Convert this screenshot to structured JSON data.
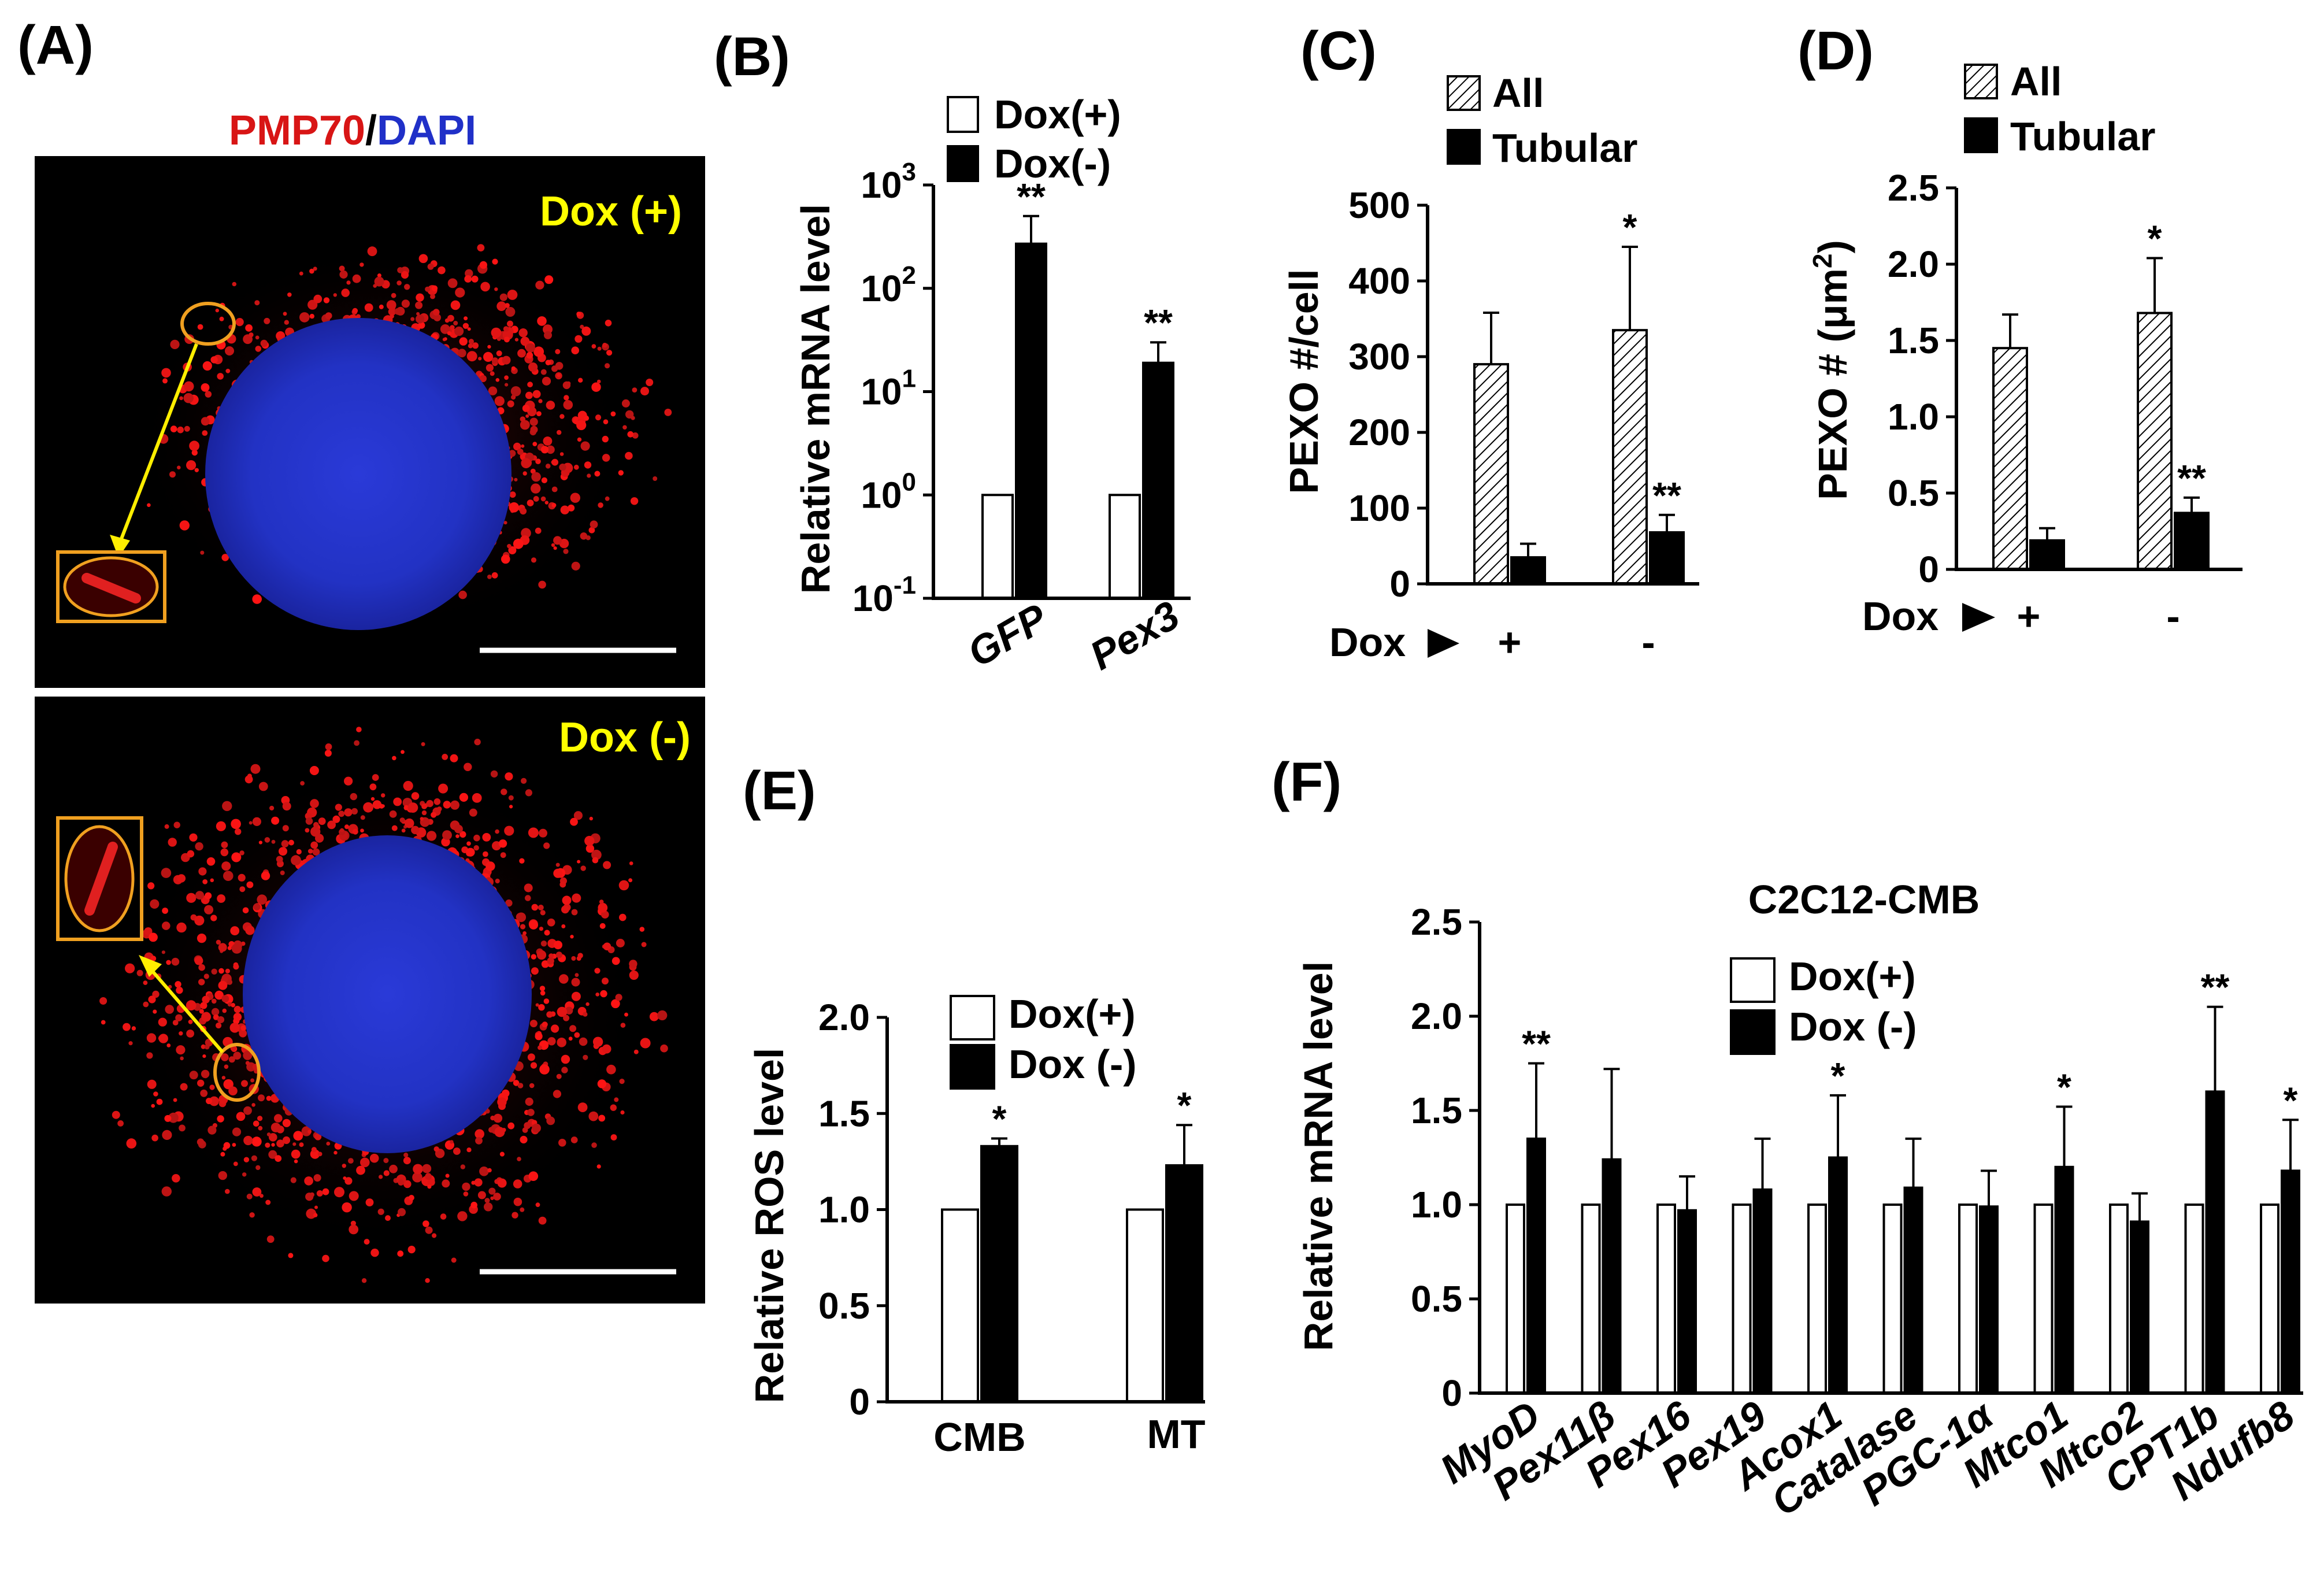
{
  "panel_labels": {
    "A": "(A)",
    "B": "(B)",
    "C": "(C)",
    "D": "(D)",
    "E": "(E)",
    "F": "(F)"
  },
  "micrograph": {
    "title_red": "PMP70",
    "title_sep": "/",
    "title_blue": "DAPI",
    "top_label": "Dox (+)",
    "bottom_label": "Dox (-)",
    "colors": {
      "stain": "#d81515",
      "nucleus": "#2030c8",
      "label": "#ffff00",
      "inset": "#f0a020",
      "arrow": "#ffee00"
    }
  },
  "chart_data": [
    {
      "id": "B",
      "type": "bar",
      "scale": "log",
      "ylabel": "Relative mRNA level",
      "ylim": [
        0.1,
        1000
      ],
      "yticks": [
        {
          "value": 0.1,
          "base": "10",
          "exp": "-1"
        },
        {
          "value": 1,
          "base": "10",
          "exp": "0"
        },
        {
          "value": 10,
          "base": "10",
          "exp": "1"
        },
        {
          "value": 100,
          "base": "10",
          "exp": "2"
        },
        {
          "value": 1000,
          "base": "10",
          "exp": "3"
        }
      ],
      "categories": [
        "GFP",
        "Pex3"
      ],
      "series": [
        {
          "name": "Dox(+)",
          "style": "white",
          "values": [
            1,
            1
          ],
          "err": [
            0,
            0
          ]
        },
        {
          "name": "Dox(-)",
          "style": "black",
          "values": [
            270,
            19
          ],
          "err": [
            230,
            11
          ]
        }
      ],
      "annotations": [
        {
          "category": 0,
          "series": 1,
          "text": "**"
        },
        {
          "category": 1,
          "series": 1,
          "text": "**"
        }
      ]
    },
    {
      "id": "C",
      "type": "bar",
      "ylabel": "PEXO #/cell",
      "ylim": [
        0,
        500
      ],
      "yticks": [
        "0",
        "100",
        "200",
        "300",
        "400",
        "500"
      ],
      "x_prefix": "Dox",
      "categories": [
        "+",
        "-"
      ],
      "series": [
        {
          "name": "All",
          "style": "hatch",
          "values": [
            290,
            335
          ],
          "err": [
            68,
            110
          ]
        },
        {
          "name": "Tubular",
          "style": "black",
          "values": [
            35,
            68
          ],
          "err": [
            18,
            23
          ]
        }
      ],
      "annotations": [
        {
          "category": 1,
          "series": 0,
          "text": "*"
        },
        {
          "category": 1,
          "series": 1,
          "text": "**"
        }
      ]
    },
    {
      "id": "D",
      "type": "bar",
      "ylabel_main": "PEXO # (μm",
      "ylabel_sup": "2",
      "ylabel_end": ")",
      "ylim": [
        0,
        2.5
      ],
      "yticks": [
        "0",
        "0.5",
        "1.0",
        "1.5",
        "2.0",
        "2.5"
      ],
      "x_prefix": "Dox",
      "categories": [
        "+",
        "-"
      ],
      "series": [
        {
          "name": "All",
          "style": "hatch",
          "values": [
            1.45,
            1.68
          ],
          "err": [
            0.22,
            0.36
          ]
        },
        {
          "name": "Tubular",
          "style": "black",
          "values": [
            0.19,
            0.37
          ],
          "err": [
            0.08,
            0.1
          ]
        }
      ],
      "annotations": [
        {
          "category": 1,
          "series": 0,
          "text": "*"
        },
        {
          "category": 1,
          "series": 1,
          "text": "**"
        }
      ]
    },
    {
      "id": "E",
      "type": "bar",
      "ylabel": "Relative ROS level",
      "ylim": [
        0,
        2.0
      ],
      "yticks": [
        "0",
        "0.5",
        "1.0",
        "1.5",
        "2.0"
      ],
      "categories": [
        "CMB",
        "MT"
      ],
      "series": [
        {
          "name": "Dox(+)",
          "style": "white",
          "values": [
            1.0,
            1.0
          ],
          "err": [
            0,
            0
          ]
        },
        {
          "name": "Dox (-)",
          "style": "black",
          "values": [
            1.33,
            1.23
          ],
          "err": [
            0.04,
            0.21
          ]
        }
      ],
      "annotations": [
        {
          "category": 0,
          "series": 1,
          "text": "*"
        },
        {
          "category": 1,
          "series": 1,
          "text": "*"
        }
      ]
    },
    {
      "id": "F",
      "type": "bar",
      "title": "C2C12-CMB",
      "ylabel": "Relative mRNA level",
      "ylim": [
        0,
        2.5
      ],
      "yticks": [
        "0",
        "0.5",
        "1.0",
        "1.5",
        "2.0",
        "2.5"
      ],
      "categories": [
        "MyoD",
        "Pex11β",
        "Pex16",
        "Pex19",
        "Acox1",
        "Catalase",
        "PGC-1α",
        "Mtco1",
        "Mtco2",
        "CPT1b",
        "Ndufb8"
      ],
      "series": [
        {
          "name": "Dox(+)",
          "style": "white",
          "values": [
            1,
            1,
            1,
            1,
            1,
            1,
            1,
            1,
            1,
            1,
            1
          ],
          "err": [
            0,
            0,
            0,
            0,
            0,
            0,
            0,
            0,
            0,
            0,
            0
          ]
        },
        {
          "name": "Dox (-)",
          "style": "black",
          "values": [
            1.35,
            1.24,
            0.97,
            1.08,
            1.25,
            1.09,
            0.99,
            1.2,
            0.91,
            1.6,
            1.18
          ],
          "err": [
            0.4,
            0.48,
            0.18,
            0.27,
            0.33,
            0.26,
            0.19,
            0.32,
            0.15,
            0.45,
            0.27
          ]
        }
      ],
      "annotations": [
        {
          "category": 0,
          "series": 1,
          "text": "**"
        },
        {
          "category": 4,
          "series": 1,
          "text": "*"
        },
        {
          "category": 7,
          "series": 1,
          "text": "*"
        },
        {
          "category": 9,
          "series": 1,
          "text": "**"
        },
        {
          "category": 10,
          "series": 1,
          "text": "*"
        }
      ]
    }
  ]
}
